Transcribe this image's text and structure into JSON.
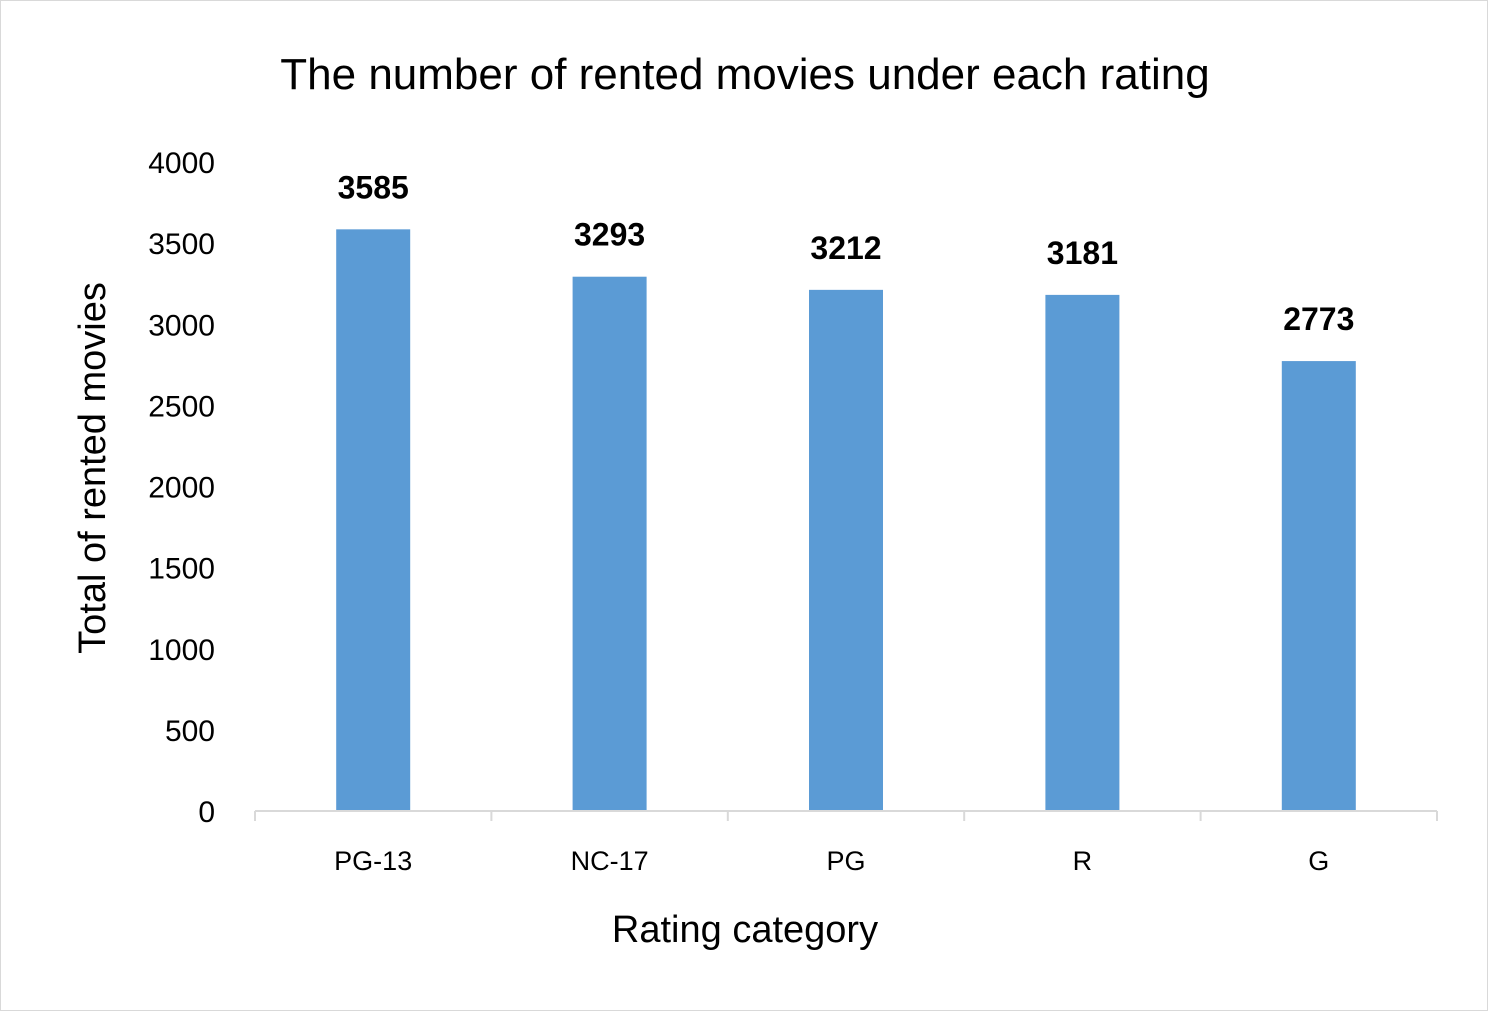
{
  "chart_data": {
    "type": "bar",
    "title": "The number of rented movies under each rating",
    "xlabel": "Rating category",
    "ylabel": "Total of rented movies",
    "categories": [
      "PG-13",
      "NC-17",
      "PG",
      "R",
      "G"
    ],
    "values": [
      3585,
      3293,
      3212,
      3181,
      2773
    ],
    "data_labels": [
      "3585",
      "3293",
      "3212",
      "3181",
      "2773"
    ],
    "yticks": [
      "0",
      "500",
      "1000",
      "1500",
      "2000",
      "2500",
      "3000",
      "3500",
      "4000"
    ],
    "ylim": [
      0,
      4000
    ],
    "grid": false,
    "legend": "none",
    "bar_color": "#5b9bd5",
    "axis_color": "#d9d9d9"
  }
}
